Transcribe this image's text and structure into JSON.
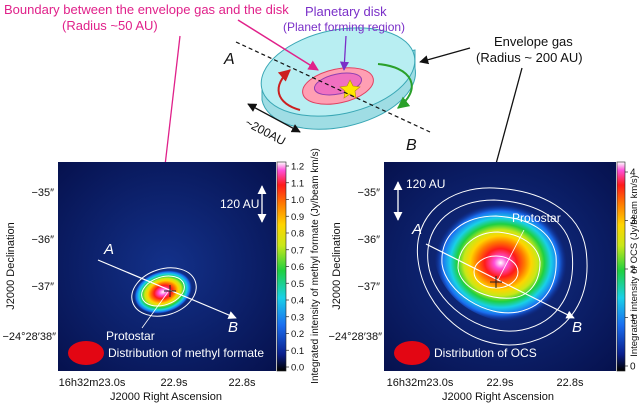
{
  "colors": {
    "magenta_annotation": "#e0218a",
    "purple_annotation": "#7a2fc8",
    "map_background": "#071a6b",
    "contour": "#ffffff",
    "beam_ellipse": "#e30613",
    "disk_fill": "#ff9fb3",
    "envelope_fill": "#b8eef2"
  },
  "diagram": {
    "boundary_label": "Boundary between the envelope gas and the disk",
    "boundary_radius": "(Radius ~50 AU)",
    "disk_label": "Planetary disk",
    "disk_sublabel": "(Planet forming region)",
    "envelope_label": "Envelope gas",
    "envelope_radius": "(Radius ~ 200 AU)",
    "point_a": "A",
    "point_b": "B",
    "scale": "~200AU"
  },
  "panel_left": {
    "y_ticks": [
      "−35″",
      "−36″",
      "−37″",
      "−24°28′38″"
    ],
    "x_ticks": [
      "16h32m23.0s",
      "22.9s",
      "22.8s"
    ],
    "xlabel": "J2000 Right Ascension",
    "ylabel": "J2000 Declination",
    "scale_label": "120 AU",
    "protostar_label": "Protostar",
    "point_a": "A",
    "point_b": "B",
    "caption": "Distribution of methyl formate",
    "colorbar_ticks": [
      "1.2",
      "1.1",
      "1.0",
      "0.9",
      "0.8",
      "0.7",
      "0.6",
      "0.5",
      "0.4",
      "0.3",
      "0.2",
      "0.1",
      "0.0"
    ],
    "colorbar_label": "Integrated intensity of methyl formate (Jy/beam km/s)"
  },
  "panel_right": {
    "y_ticks": [
      "−35″",
      "−36″",
      "−37″",
      "−24°28′38″"
    ],
    "x_ticks": [
      "16h32m23.0s",
      "22.9s",
      "22.8s"
    ],
    "xlabel": "J2000 Right Ascension",
    "ylabel": "J2000 Declination",
    "scale_label": "120 AU",
    "protostar_label": "Protostar",
    "point_a": "A",
    "point_b": "B",
    "caption": "Distribution of OCS",
    "colorbar_ticks": [
      "4",
      "3",
      "2",
      "1",
      "0"
    ],
    "colorbar_label": "Integrated intensity of OCS (Jy/beam km/s)"
  }
}
